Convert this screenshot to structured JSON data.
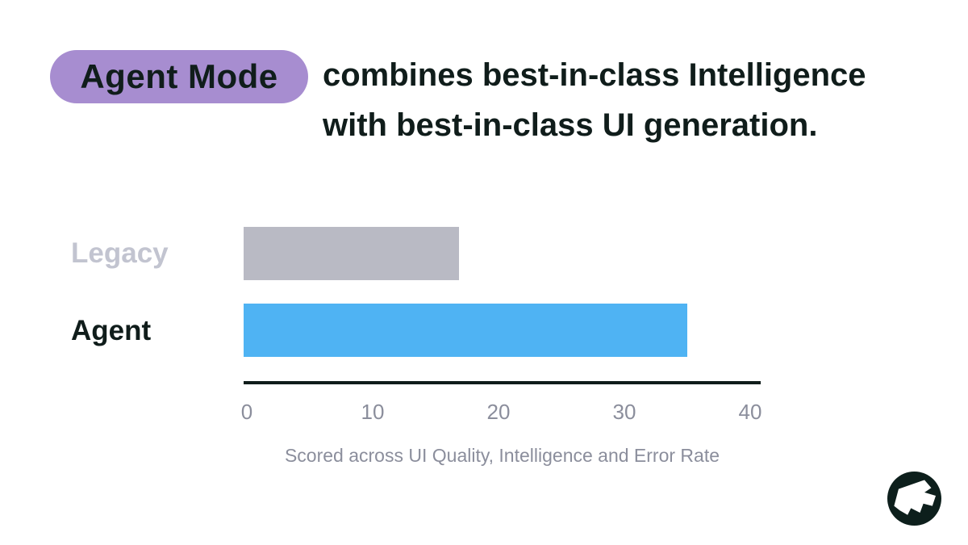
{
  "header": {
    "badge_label": "Agent Mode",
    "headline_line1": "combines best-in-class Intelligence",
    "headline_line2": "with best-in-class UI generation."
  },
  "chart_data": {
    "type": "bar",
    "orientation": "horizontal",
    "categories": [
      "Legacy",
      "Agent"
    ],
    "values": [
      17,
      35
    ],
    "xlim": [
      0,
      40
    ],
    "x_ticks": [
      0,
      10,
      20,
      30,
      40
    ],
    "caption": "Scored across UI Quality, Intelligence and Error Rate",
    "grid": false,
    "legend": false,
    "bar_colors": [
      "#b9bac4",
      "#4fb3f3"
    ],
    "category_label_colors": [
      "#c2c4d0",
      "#101d1b"
    ]
  },
  "colors": {
    "badge_bg": "#a78dd0",
    "text_dark": "#101d1b",
    "bar_legacy": "#b9bac4",
    "bar_agent": "#4fb3f3",
    "axis": "#101d1b",
    "tick_text": "#8b8e9c",
    "logo_bg": "#0d1f1c"
  }
}
